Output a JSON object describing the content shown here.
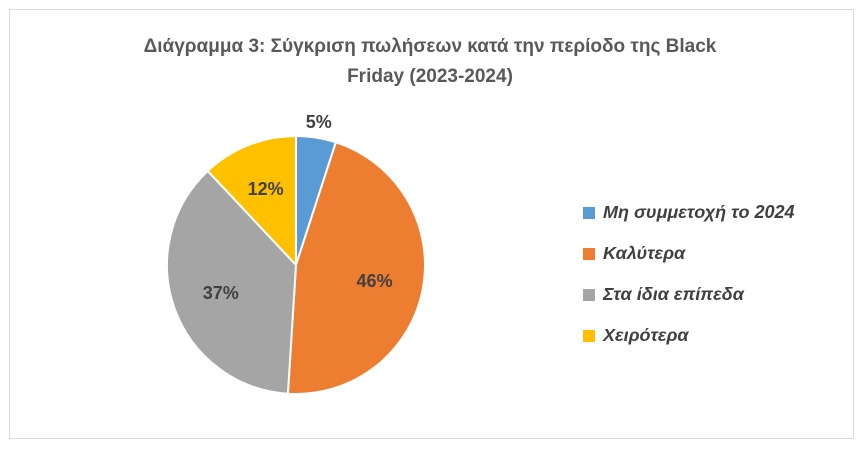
{
  "chart_data": {
    "type": "pie",
    "title_lines": [
      "Διάγραμμα 3: Σύγκριση πωλήσεων κατά την περίοδο της Black",
      "Friday (2023-2024)"
    ],
    "categories": [
      "Μη συμμετοχή το 2024",
      "Καλύτερα",
      "Στα ίδια επίπεδα",
      "Χειρότερα"
    ],
    "values": [
      5,
      46,
      37,
      12
    ],
    "data_labels": [
      "5%",
      "46%",
      "37%",
      "12%"
    ],
    "colors": [
      "#5b9bd5",
      "#ed7d31",
      "#a5a5a5",
      "#ffc000"
    ],
    "legend_position": "right"
  }
}
